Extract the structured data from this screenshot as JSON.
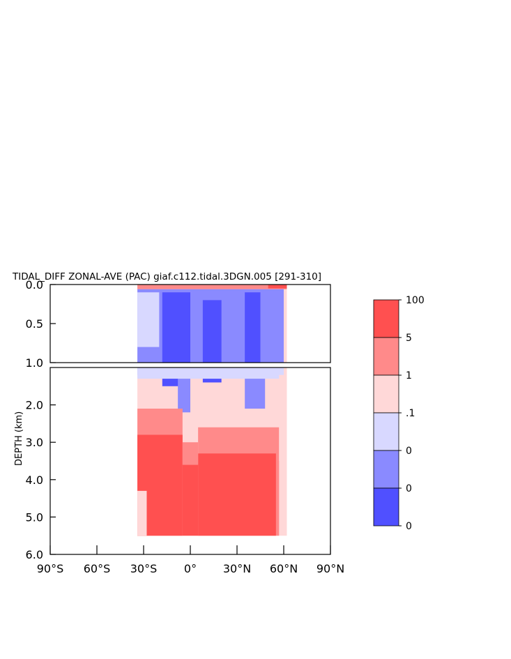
{
  "chart_data": {
    "type": "heatmap",
    "title": "TIDAL_DIFF ZONAL-AVE (PAC) giaf.c112.tidal.3DGN.005 [291-310]",
    "xlabel": "",
    "ylabel": "DEPTH (km)",
    "xlim": [
      -90,
      90
    ],
    "ylim_upper": [
      0.0,
      1.0
    ],
    "ylim_lower": [
      1.0,
      6.0
    ],
    "x_ticks": [
      {
        "value": -90,
        "label": "90°S"
      },
      {
        "value": -60,
        "label": "60°S"
      },
      {
        "value": -30,
        "label": "30°S"
      },
      {
        "value": 0,
        "label": "0°"
      },
      {
        "value": 30,
        "label": "30°N"
      },
      {
        "value": 60,
        "label": "60°N"
      },
      {
        "value": 90,
        "label": "90°N"
      }
    ],
    "y_ticks_upper": [
      {
        "value": 0.0,
        "label": "0.0"
      },
      {
        "value": 0.5,
        "label": "0.5"
      },
      {
        "value": 1.0,
        "label": "1.0"
      }
    ],
    "y_ticks_lower": [
      {
        "value": 2.0,
        "label": "2.0"
      },
      {
        "value": 3.0,
        "label": "3.0"
      },
      {
        "value": 4.0,
        "label": "4.0"
      },
      {
        "value": 5.0,
        "label": "5.0"
      },
      {
        "value": 6.0,
        "label": "6.0"
      }
    ],
    "colorbar": {
      "colors": [
        "#ff5050",
        "#ff8a8a",
        "#ffd8d8",
        "#d8d8ff",
        "#8a8aff",
        "#5050ff"
      ],
      "labels": [
        "100",
        "5",
        "1",
        ".1",
        "0",
        "0",
        "0"
      ]
    },
    "data_extent": {
      "lat_min": -34,
      "lat_max": 62,
      "depth_max": 5.5
    },
    "regions": [
      {
        "lat0": -34,
        "lat1": 62,
        "d0": 0.0,
        "d1": 5.5,
        "level": 2
      },
      {
        "lat0": -34,
        "lat1": 62,
        "d0": 0.0,
        "d1": 0.06,
        "level": 1
      },
      {
        "lat0": 50,
        "lat1": 62,
        "d0": 0.0,
        "d1": 0.05,
        "level": 0
      },
      {
        "lat0": -34,
        "lat1": 60,
        "d0": 0.06,
        "d1": 1.2,
        "level": 4
      },
      {
        "lat0": -34,
        "lat1": -20,
        "d0": 0.1,
        "d1": 0.8,
        "level": 3
      },
      {
        "lat0": -18,
        "lat1": 0,
        "d0": 0.1,
        "d1": 1.5,
        "level": 5
      },
      {
        "lat0": 8,
        "lat1": 20,
        "d0": 0.2,
        "d1": 1.4,
        "level": 5
      },
      {
        "lat0": 35,
        "lat1": 45,
        "d0": 0.1,
        "d1": 1.1,
        "level": 5
      },
      {
        "lat0": -8,
        "lat1": 0,
        "d0": 1.0,
        "d1": 2.2,
        "level": 4
      },
      {
        "lat0": 35,
        "lat1": 48,
        "d0": 1.0,
        "d1": 2.1,
        "level": 4
      },
      {
        "lat0": -34,
        "lat1": 60,
        "d0": 1.0,
        "d1": 1.3,
        "level": 3
      },
      {
        "lat0": -34,
        "lat1": -5,
        "d0": 2.1,
        "d1": 5.5,
        "level": 1
      },
      {
        "lat0": -34,
        "lat1": -5,
        "d0": 2.8,
        "d1": 5.5,
        "level": 0
      },
      {
        "lat0": 5,
        "lat1": 57,
        "d0": 2.6,
        "d1": 5.5,
        "level": 1
      },
      {
        "lat0": 5,
        "lat1": 55,
        "d0": 3.3,
        "d1": 5.5,
        "level": 0
      },
      {
        "lat0": -5,
        "lat1": 5,
        "d0": 3.6,
        "d1": 5.5,
        "level": 0
      },
      {
        "lat0": -5,
        "lat1": 5,
        "d0": 3.0,
        "d1": 3.6,
        "level": 1
      },
      {
        "lat0": -34,
        "lat1": -28,
        "d0": 4.3,
        "d1": 5.5,
        "level": 2
      },
      {
        "lat0": 57,
        "lat1": 62,
        "d0": 1.2,
        "d1": 3.5,
        "level": 2
      }
    ]
  }
}
